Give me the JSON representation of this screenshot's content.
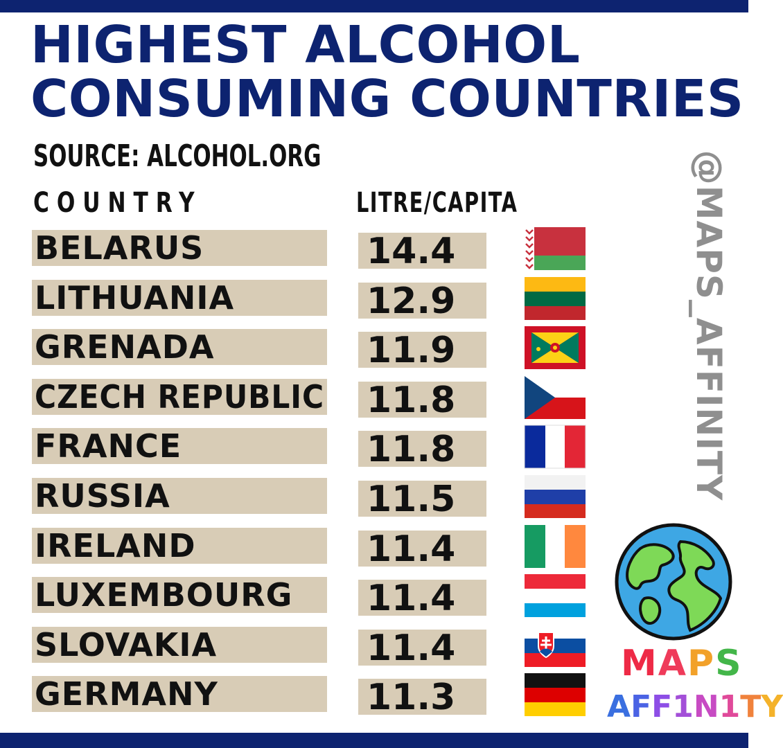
{
  "title": {
    "line1": "HIGHEST ALCOHOL",
    "line2": "CONSUMING COUNTRIES"
  },
  "source": "SOURCE: ALCOHOL.ORG",
  "headers": {
    "country": "COUNTRY",
    "value": "LITRE/CAPITA"
  },
  "watermark": "@MAPS_AFFINITY",
  "logo": {
    "line1": "MAPS",
    "line2": "AFF1N1TY"
  },
  "colors": {
    "brand_navy": "#0d2370",
    "cell_beige": "#d8ccb6",
    "watermark_gray": "#8f8f8f"
  },
  "chart_data": {
    "type": "table",
    "title": "HIGHEST ALCOHOL CONSUMING COUNTRIES",
    "subtitle": "SOURCE: ALCOHOL.ORG",
    "columns": [
      "COUNTRY",
      "LITRE/CAPITA"
    ],
    "rows": [
      {
        "country": "BELARUS",
        "value": "14.4",
        "flag": "belarus-flag"
      },
      {
        "country": "LITHUANIA",
        "value": "12.9",
        "flag": "lithuania-flag"
      },
      {
        "country": "GRENADA",
        "value": "11.9",
        "flag": "grenada-flag"
      },
      {
        "country": "CZECH REPUBLIC",
        "value": "11.8",
        "flag": "czech-flag"
      },
      {
        "country": "FRANCE",
        "value": "11.8",
        "flag": "france-flag"
      },
      {
        "country": "RUSSIA",
        "value": "11.5",
        "flag": "russia-flag"
      },
      {
        "country": "IRELAND",
        "value": "11.4",
        "flag": "ireland-flag"
      },
      {
        "country": "LUXEMBOURG",
        "value": "11.4",
        "flag": "luxembourg-flag"
      },
      {
        "country": "SLOVAKIA",
        "value": "11.4",
        "flag": "slovakia-flag"
      },
      {
        "country": "GERMANY",
        "value": "11.3",
        "flag": "germany-flag"
      }
    ]
  }
}
